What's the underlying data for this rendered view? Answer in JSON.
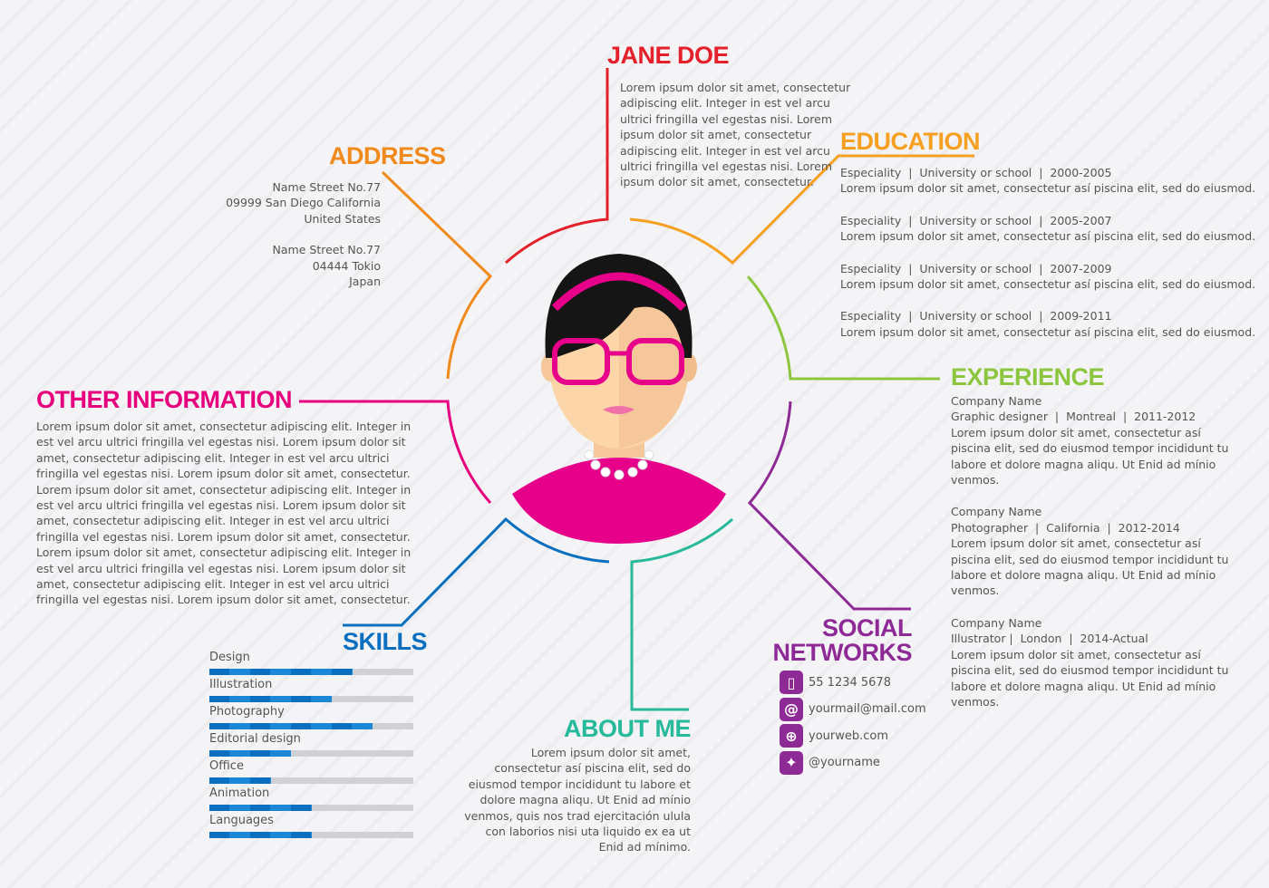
{
  "name": {
    "title": "JANE DOE",
    "text": "Lorem ipsum dolor sit amet, consectetur adipiscing elit. Integer in est vel arcu ultrici fringilla vel egestas nisi. Lorem ipsum dolor sit amet, consectetur adipiscing elit. Integer in est vel arcu ultrici fringilla vel egestas nisi. Lorem ipsum dolor sit amet, consectetur."
  },
  "address": {
    "title": "ADDRESS",
    "lines": [
      "Name Street No.77",
      "09999 San Diego California",
      "United States",
      "",
      "Name Street No.77",
      "04444 Tokio",
      "Japan"
    ]
  },
  "education": {
    "title": "EDUCATION",
    "items": [
      {
        "head": "Especiality  |  University or school  |  2000-2005",
        "text": "Lorem ipsum dolor sit amet, consectetur así piscina elit, sed do eiusmod."
      },
      {
        "head": "Especiality  |  University or school  |  2005-2007",
        "text": "Lorem ipsum dolor sit amet, consectetur así piscina elit, sed do eiusmod."
      },
      {
        "head": "Especiality  |  University or school  |  2007-2009",
        "text": "Lorem ipsum dolor sit amet, consectetur así piscina elit, sed do eiusmod."
      },
      {
        "head": "Especiality  |  University or school  |  2009-2011",
        "text": "Lorem ipsum dolor sit amet, consectetur así piscina elit, sed do eiusmod."
      }
    ]
  },
  "experience": {
    "title": "EXPERIENCE",
    "items": [
      {
        "company": "Company Name",
        "role": "Graphic designer  |  Montreal  |  2011-2012",
        "text": "Lorem ipsum dolor sit amet, consectetur así piscina elit, sed do eiusmod tempor incididunt tu labore et dolore magna aliqu. Ut Enid ad mínio venmos."
      },
      {
        "company": "Company Name",
        "role": "Photographer  |  California  |  2012-2014",
        "text": "Lorem ipsum dolor sit amet, consectetur así piscina elit, sed do eiusmod tempor incididunt tu labore et dolore magna aliqu. Ut Enid ad mínio venmos."
      },
      {
        "company": "Company Name",
        "role": "Illustrator |  London  |  2014-Actual",
        "text": "Lorem ipsum dolor sit amet, consectetur así piscina elit, sed do eiusmod tempor incididunt tu labore et dolore magna aliqu. Ut Enid ad mínio venmos."
      }
    ]
  },
  "other": {
    "title": "OTHER INFORMATION",
    "paragraphs": [
      "Lorem ipsum dolor sit amet, consectetur adipiscing elit. Integer in est vel arcu ultrici fringilla vel egestas nisi. Lorem ipsum dolor sit amet, consectetur adipiscing elit. Integer in est vel arcu ultrici fringilla vel egestas nisi. Lorem ipsum dolor sit amet, consectetur.",
      "Lorem ipsum dolor sit amet, consectetur adipiscing elit. Integer in est vel arcu ultrici fringilla vel egestas nisi. Lorem ipsum dolor sit amet, consectetur adipiscing elit. Integer in est vel arcu ultrici fringilla vel egestas nisi. Lorem ipsum dolor sit amet, consectetur.",
      "Lorem ipsum dolor sit amet, consectetur adipiscing elit. Integer in est vel arcu ultrici fringilla vel egestas nisi. Lorem ipsum dolor sit amet, consectetur adipiscing elit. Integer in est vel arcu ultrici fringilla vel egestas nisi. Lorem ipsum dolor sit amet, consectetur."
    ]
  },
  "skills": {
    "title": "SKILLS",
    "items": [
      {
        "label": "Design",
        "level": 0.7
      },
      {
        "label": "Illustration",
        "level": 0.6
      },
      {
        "label": "Photography",
        "level": 0.8
      },
      {
        "label": "Editorial design",
        "level": 0.4
      },
      {
        "label": "Office",
        "level": 0.3
      },
      {
        "label": "Animation",
        "level": 0.5
      },
      {
        "label": "Languages",
        "level": 0.5
      }
    ]
  },
  "about": {
    "title": "ABOUT ME",
    "text": "Lorem ipsum dolor sit amet, consectetur así piscina elit, sed do eiusmod tempor incididunt tu labore et dolore magna aliqu. Ut Enid ad mínio venmos, quis nos trad ejercitación ulula con laborios nisi uta liquido ex ea ut Enid ad mínimo."
  },
  "social": {
    "title1": "SOCIAL",
    "title2": "NETWORKS",
    "items": [
      {
        "icon": "phone-icon",
        "glyph": "▯",
        "text": "55 1234 5678"
      },
      {
        "icon": "email-icon",
        "glyph": "@",
        "text": "yourmail@mail.com"
      },
      {
        "icon": "globe-icon",
        "glyph": "⊕",
        "text": "yourweb.com"
      },
      {
        "icon": "twitter-icon",
        "glyph": "✦",
        "text": "@yourname"
      }
    ]
  },
  "colors": {
    "red": "#e4202a",
    "orange": "#f08a1c",
    "green": "#8cc63f",
    "purple": "#8e2a96",
    "teal": "#26b99a",
    "blue": "#0a6fbf",
    "magenta": "#e6007e"
  }
}
